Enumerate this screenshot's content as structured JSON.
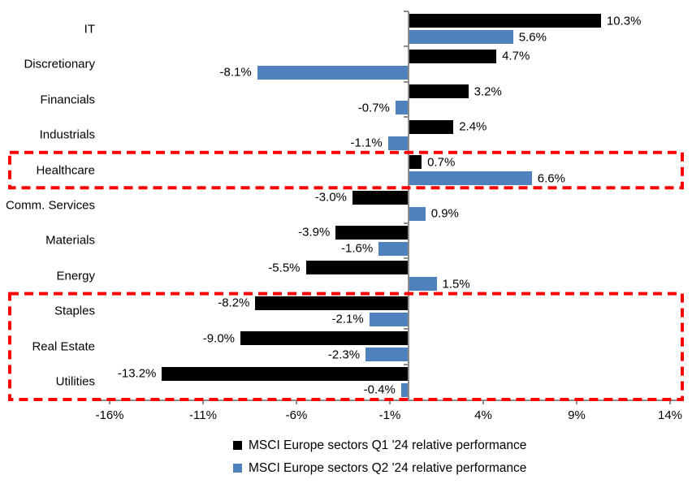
{
  "chart_data": {
    "type": "bar",
    "orientation": "horizontal",
    "title": "",
    "categories": [
      "IT",
      "Discretionary",
      "Financials",
      "Industrials",
      "Healthcare",
      "Comm. Services",
      "Materials",
      "Energy",
      "Staples",
      "Real Estate",
      "Utilities"
    ],
    "series": [
      {
        "name": "MSCI Europe sectors Q1 '24 relative performance",
        "color": "#000000",
        "values": [
          10.3,
          4.7,
          3.2,
          2.4,
          0.7,
          -3.0,
          -3.9,
          -5.5,
          -8.2,
          -9.0,
          -13.2
        ],
        "value_labels": [
          "10.3%",
          "4.7%",
          "3.2%",
          "2.4%",
          "0.7%",
          "-3.0%",
          "-3.9%",
          "-5.5%",
          "-8.2%",
          "-9.0%",
          "-13.2%"
        ]
      },
      {
        "name": "MSCI Europe sectors Q2 '24 relative performance",
        "color": "#4F81BD",
        "values": [
          5.6,
          -8.1,
          -0.7,
          -1.1,
          6.6,
          0.9,
          -1.6,
          1.5,
          -2.1,
          -2.3,
          -0.4
        ],
        "value_labels": [
          "5.6%",
          "-8.1%",
          "-0.7%",
          "-1.1%",
          "6.6%",
          "0.9%",
          "-1.6%",
          "1.5%",
          "-2.1%",
          "-2.3%",
          "-0.4%"
        ]
      }
    ],
    "x_axis": {
      "tick_labels": [
        "-16%",
        "-11%",
        "-6%",
        "-1%",
        "4%",
        "9%",
        "14%"
      ],
      "tick_values": [
        -16,
        -11,
        -6,
        -1,
        4,
        9,
        14
      ],
      "range": [
        -16.5,
        14.5
      ],
      "grid": false
    },
    "legend_position": "bottom",
    "axis_color": "#8c8c8c",
    "highlight_color": "#FF0000",
    "highlights": [
      {
        "categories": [
          "Healthcare"
        ]
      },
      {
        "categories": [
          "Staples",
          "Real Estate",
          "Utilities"
        ]
      }
    ]
  }
}
